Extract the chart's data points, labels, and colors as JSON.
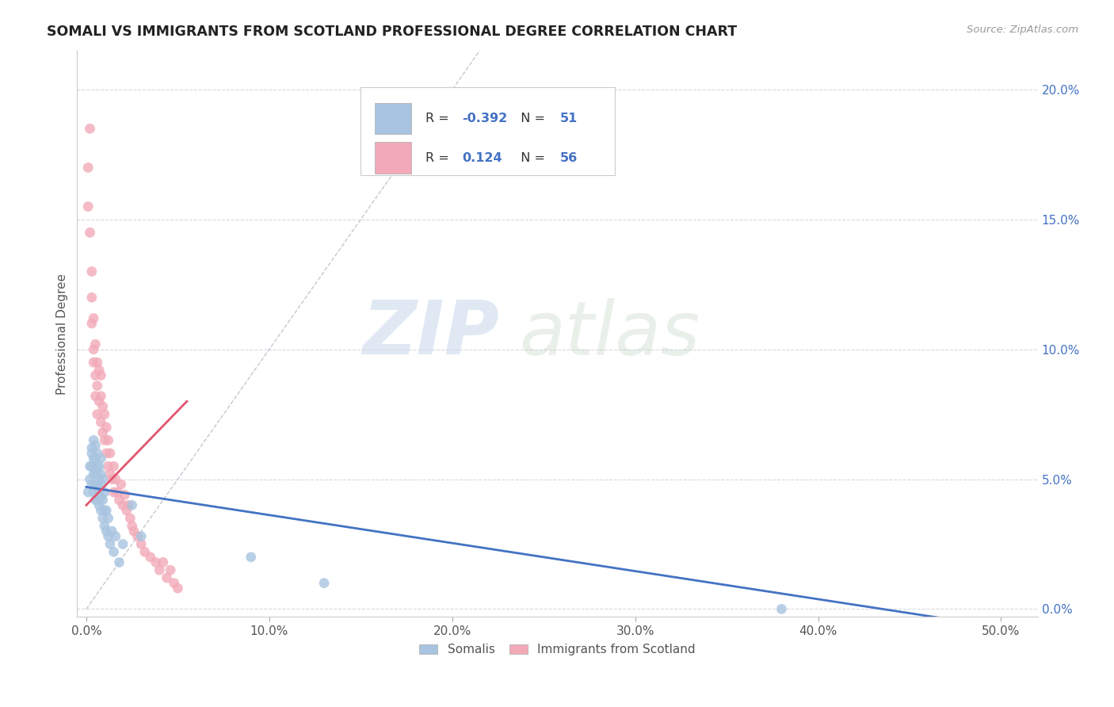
{
  "title": "SOMALI VS IMMIGRANTS FROM SCOTLAND PROFESSIONAL DEGREE CORRELATION CHART",
  "source": "Source: ZipAtlas.com",
  "ylabel": "Professional Degree",
  "xlabel_ticks": [
    "0.0%",
    "10.0%",
    "20.0%",
    "30.0%",
    "40.0%",
    "50.0%"
  ],
  "xlabel_vals": [
    0.0,
    0.1,
    0.2,
    0.3,
    0.4,
    0.5
  ],
  "ylabel_ticks": [
    "0.0%",
    "5.0%",
    "10.0%",
    "15.0%",
    "20.0%"
  ],
  "ylabel_vals": [
    0.0,
    0.05,
    0.1,
    0.15,
    0.2
  ],
  "xlim": [
    -0.005,
    0.52
  ],
  "ylim": [
    -0.003,
    0.215
  ],
  "legend1_label": "Somalis",
  "legend2_label": "Immigrants from Scotland",
  "r1": "-0.392",
  "n1": "51",
  "r2": "0.124",
  "n2": "56",
  "color_blue": "#a8c4e0",
  "color_pink": "#f2aab8",
  "line_blue": "#4472c4",
  "line_pink": "#e05570",
  "diag_color": "#c0c0cc",
  "watermark_zip": "ZIP",
  "watermark_atlas": "atlas",
  "background": "#ffffff",
  "somali_x": [
    0.001,
    0.002,
    0.002,
    0.003,
    0.003,
    0.003,
    0.003,
    0.004,
    0.004,
    0.004,
    0.004,
    0.005,
    0.005,
    0.005,
    0.005,
    0.005,
    0.006,
    0.006,
    0.006,
    0.006,
    0.006,
    0.007,
    0.007,
    0.007,
    0.007,
    0.008,
    0.008,
    0.008,
    0.008,
    0.008,
    0.009,
    0.009,
    0.009,
    0.01,
    0.01,
    0.01,
    0.011,
    0.011,
    0.012,
    0.012,
    0.013,
    0.014,
    0.015,
    0.016,
    0.018,
    0.02,
    0.025,
    0.03,
    0.09,
    0.13,
    0.38
  ],
  "somali_y": [
    0.045,
    0.05,
    0.055,
    0.06,
    0.048,
    0.055,
    0.062,
    0.045,
    0.052,
    0.058,
    0.065,
    0.042,
    0.048,
    0.053,
    0.058,
    0.063,
    0.042,
    0.047,
    0.052,
    0.055,
    0.06,
    0.04,
    0.045,
    0.05,
    0.055,
    0.038,
    0.043,
    0.048,
    0.052,
    0.058,
    0.035,
    0.042,
    0.05,
    0.032,
    0.038,
    0.045,
    0.03,
    0.038,
    0.028,
    0.035,
    0.025,
    0.03,
    0.022,
    0.028,
    0.018,
    0.025,
    0.04,
    0.028,
    0.02,
    0.01,
    0.0
  ],
  "scotland_x": [
    0.001,
    0.001,
    0.002,
    0.002,
    0.003,
    0.003,
    0.003,
    0.004,
    0.004,
    0.004,
    0.005,
    0.005,
    0.005,
    0.006,
    0.006,
    0.006,
    0.007,
    0.007,
    0.008,
    0.008,
    0.008,
    0.009,
    0.009,
    0.01,
    0.01,
    0.011,
    0.011,
    0.012,
    0.012,
    0.013,
    0.013,
    0.014,
    0.015,
    0.015,
    0.016,
    0.017,
    0.018,
    0.019,
    0.02,
    0.021,
    0.022,
    0.023,
    0.024,
    0.025,
    0.026,
    0.028,
    0.03,
    0.032,
    0.035,
    0.038,
    0.04,
    0.042,
    0.044,
    0.046,
    0.048,
    0.05
  ],
  "scotland_y": [
    0.17,
    0.155,
    0.185,
    0.145,
    0.12,
    0.11,
    0.13,
    0.1,
    0.112,
    0.095,
    0.09,
    0.102,
    0.082,
    0.086,
    0.095,
    0.075,
    0.08,
    0.092,
    0.072,
    0.082,
    0.09,
    0.068,
    0.078,
    0.065,
    0.075,
    0.06,
    0.07,
    0.055,
    0.065,
    0.052,
    0.06,
    0.05,
    0.045,
    0.055,
    0.05,
    0.045,
    0.042,
    0.048,
    0.04,
    0.044,
    0.038,
    0.04,
    0.035,
    0.032,
    0.03,
    0.028,
    0.025,
    0.022,
    0.02,
    0.018,
    0.015,
    0.018,
    0.012,
    0.015,
    0.01,
    0.008
  ],
  "blue_line_x": [
    0.0,
    0.5
  ],
  "blue_line_y": [
    0.047,
    -0.007
  ],
  "pink_line_x": [
    0.0,
    0.055
  ],
  "pink_line_y": [
    0.04,
    0.08
  ]
}
